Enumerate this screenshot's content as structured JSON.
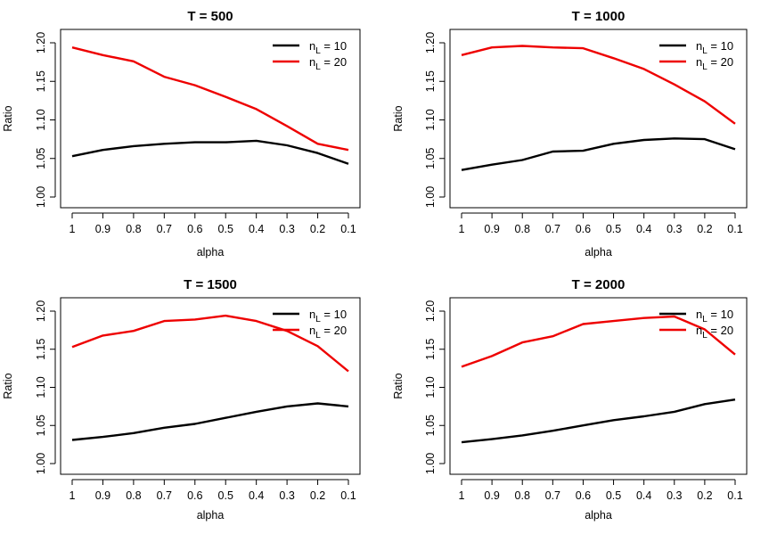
{
  "chart_data": [
    {
      "type": "line",
      "title": "T = 500",
      "xlabel": "alpha",
      "ylabel": "Ratio",
      "categories": [
        "1",
        "0.9",
        "0.8",
        "0.7",
        "0.6",
        "0.5",
        "0.4",
        "0.3",
        "0.2",
        "0.1"
      ],
      "ylim": [
        1.0,
        1.2
      ],
      "yticks": [
        "1.00",
        "1.05",
        "1.10",
        "1.15",
        "1.20"
      ],
      "legend_position": "top-right",
      "series": [
        {
          "name": "10",
          "legend_prefix": "n",
          "legend_sub": "L",
          "legend_sep": " = ",
          "color": "#000000",
          "values": [
            1.053,
            1.061,
            1.066,
            1.069,
            1.071,
            1.071,
            1.073,
            1.067,
            1.057,
            1.043
          ]
        },
        {
          "name": "20",
          "legend_prefix": "n",
          "legend_sub": "L",
          "legend_sep": " = ",
          "color": "#ee0000",
          "values": [
            1.194,
            1.184,
            1.176,
            1.156,
            1.145,
            1.13,
            1.114,
            1.092,
            1.069,
            1.061
          ]
        }
      ]
    },
    {
      "type": "line",
      "title": "T = 1000",
      "xlabel": "alpha",
      "ylabel": "Ratio",
      "categories": [
        "1",
        "0.9",
        "0.8",
        "0.7",
        "0.6",
        "0.5",
        "0.4",
        "0.3",
        "0.2",
        "0.1"
      ],
      "ylim": [
        1.0,
        1.2
      ],
      "yticks": [
        "1.00",
        "1.05",
        "1.10",
        "1.15",
        "1.20"
      ],
      "legend_position": "top-right",
      "series": [
        {
          "name": "10",
          "legend_prefix": "n",
          "legend_sub": "L",
          "legend_sep": " = ",
          "color": "#000000",
          "values": [
            1.035,
            1.042,
            1.048,
            1.059,
            1.06,
            1.069,
            1.074,
            1.076,
            1.075,
            1.062
          ]
        },
        {
          "name": "20",
          "legend_prefix": "n",
          "legend_sub": "L",
          "legend_sep": " = ",
          "color": "#ee0000",
          "values": [
            1.184,
            1.194,
            1.196,
            1.194,
            1.193,
            1.18,
            1.166,
            1.146,
            1.124,
            1.095
          ]
        }
      ]
    },
    {
      "type": "line",
      "title": "T = 1500",
      "xlabel": "alpha",
      "ylabel": "Ratio",
      "categories": [
        "1",
        "0.9",
        "0.8",
        "0.7",
        "0.6",
        "0.5",
        "0.4",
        "0.3",
        "0.2",
        "0.1"
      ],
      "ylim": [
        1.0,
        1.2
      ],
      "yticks": [
        "1.00",
        "1.05",
        "1.10",
        "1.15",
        "1.20"
      ],
      "legend_position": "top-right",
      "series": [
        {
          "name": "10",
          "legend_prefix": "n",
          "legend_sub": "L",
          "legend_sep": " = ",
          "color": "#000000",
          "values": [
            1.031,
            1.035,
            1.04,
            1.047,
            1.052,
            1.06,
            1.068,
            1.075,
            1.079,
            1.075
          ]
        },
        {
          "name": "20",
          "legend_prefix": "n",
          "legend_sub": "L",
          "legend_sep": " = ",
          "color": "#ee0000",
          "values": [
            1.153,
            1.168,
            1.174,
            1.187,
            1.189,
            1.194,
            1.187,
            1.174,
            1.154,
            1.121
          ]
        }
      ]
    },
    {
      "type": "line",
      "title": "T = 2000",
      "xlabel": "alpha",
      "ylabel": "Ratio",
      "categories": [
        "1",
        "0.9",
        "0.8",
        "0.7",
        "0.6",
        "0.5",
        "0.4",
        "0.3",
        "0.2",
        "0.1"
      ],
      "ylim": [
        1.0,
        1.2
      ],
      "yticks": [
        "1.00",
        "1.05",
        "1.10",
        "1.15",
        "1.20"
      ],
      "legend_position": "top-right",
      "series": [
        {
          "name": "10",
          "legend_prefix": "n",
          "legend_sub": "L",
          "legend_sep": " = ",
          "color": "#000000",
          "values": [
            1.028,
            1.032,
            1.037,
            1.043,
            1.05,
            1.057,
            1.062,
            1.068,
            1.078,
            1.084
          ]
        },
        {
          "name": "20",
          "legend_prefix": "n",
          "legend_sub": "L",
          "legend_sep": " = ",
          "color": "#ee0000",
          "values": [
            1.127,
            1.141,
            1.159,
            1.167,
            1.183,
            1.187,
            1.191,
            1.193,
            1.176,
            1.143
          ]
        }
      ]
    }
  ]
}
